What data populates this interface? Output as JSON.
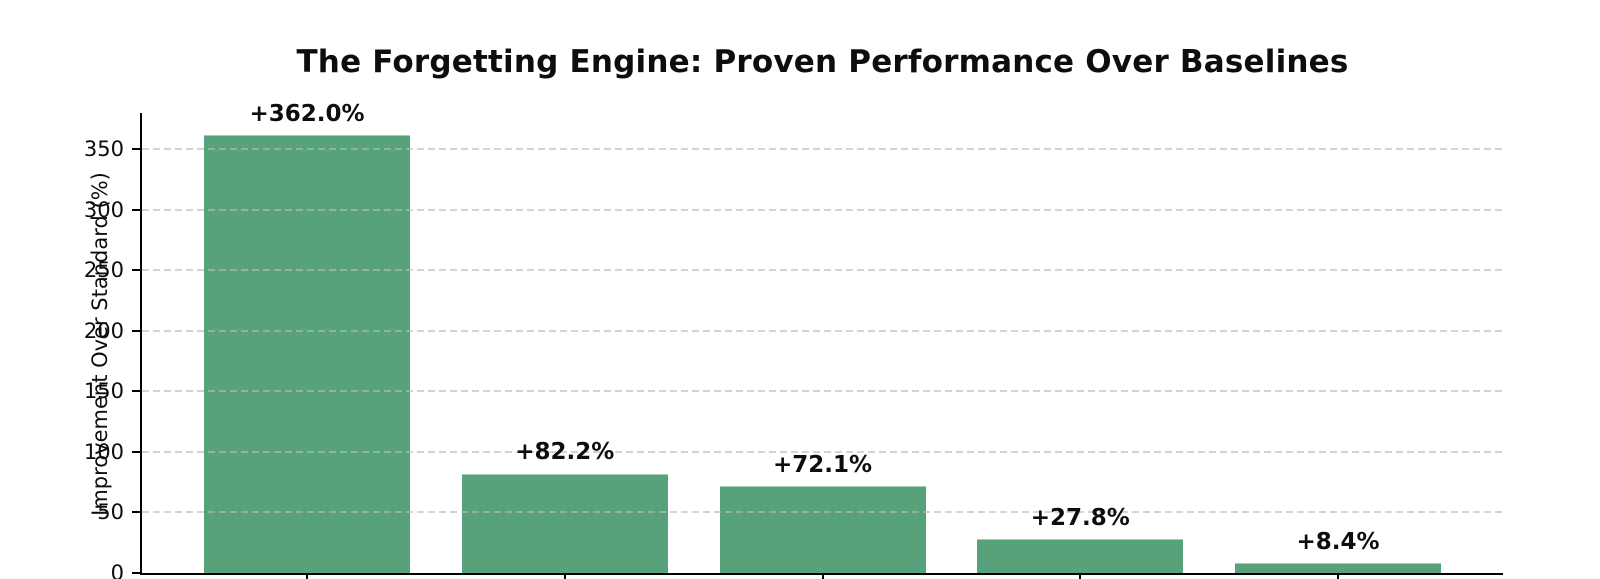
{
  "chart_data": {
    "type": "bar",
    "title": "The Forgetting Engine: Proven Performance Over Baselines",
    "ylabel": "Improvement Over Standard (%)",
    "xlabel": "",
    "values": [
      362.0,
      82.2,
      72.1,
      27.8,
      8.4
    ],
    "bar_labels": [
      "+362.0%",
      "+82.2%",
      "+72.1%",
      "+27.8%",
      "+8.4%"
    ],
    "yticks": [
      0,
      50,
      100,
      150,
      200,
      250,
      300,
      350
    ],
    "ylim": [
      0,
      380
    ],
    "bar_color": "#58a27b",
    "grid": "horizontal-dashed",
    "gridline_color": "#dcdcdc",
    "legend": "none",
    "note": "x-axis category labels cut off at bottom edge of image"
  },
  "figure": {
    "background": "#ffffff",
    "text_color": "#0d0d0d"
  }
}
